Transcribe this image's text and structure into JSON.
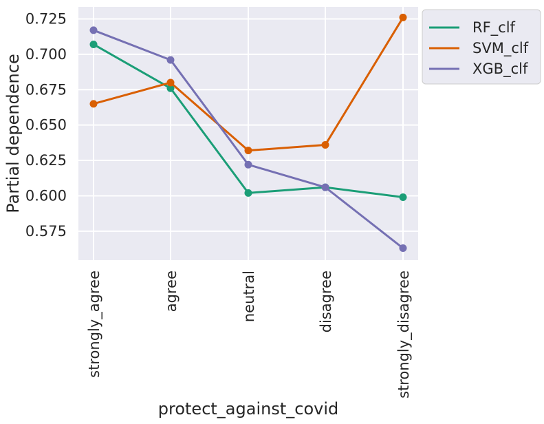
{
  "chart_data": {
    "type": "line",
    "title": "",
    "xlabel": "protect_against_covid",
    "ylabel": "Partial dependence",
    "categories": [
      "strongly_agree",
      "agree",
      "neutral",
      "disagree",
      "strongly_disagree"
    ],
    "series": [
      {
        "name": "RF_clf",
        "color": "#1b9e77",
        "values": [
          0.707,
          0.676,
          0.602,
          0.606,
          0.599
        ]
      },
      {
        "name": "SVM_clf",
        "color": "#d95f02",
        "values": [
          0.665,
          0.68,
          0.632,
          0.636,
          0.726
        ]
      },
      {
        "name": "XGB_clf",
        "color": "#7570b3",
        "values": [
          0.717,
          0.696,
          0.622,
          0.606,
          0.563
        ]
      }
    ],
    "ylim": [
      0.5545,
      0.7335
    ],
    "yticks": [
      0.575,
      0.6,
      0.625,
      0.65,
      0.675,
      0.7,
      0.725
    ],
    "ytick_labels": [
      "0.575",
      "0.600",
      "0.625",
      "0.650",
      "0.675",
      "0.700",
      "0.725"
    ],
    "grid": true,
    "legend_position": "outside-top-right",
    "background": "#eaeaf2"
  }
}
